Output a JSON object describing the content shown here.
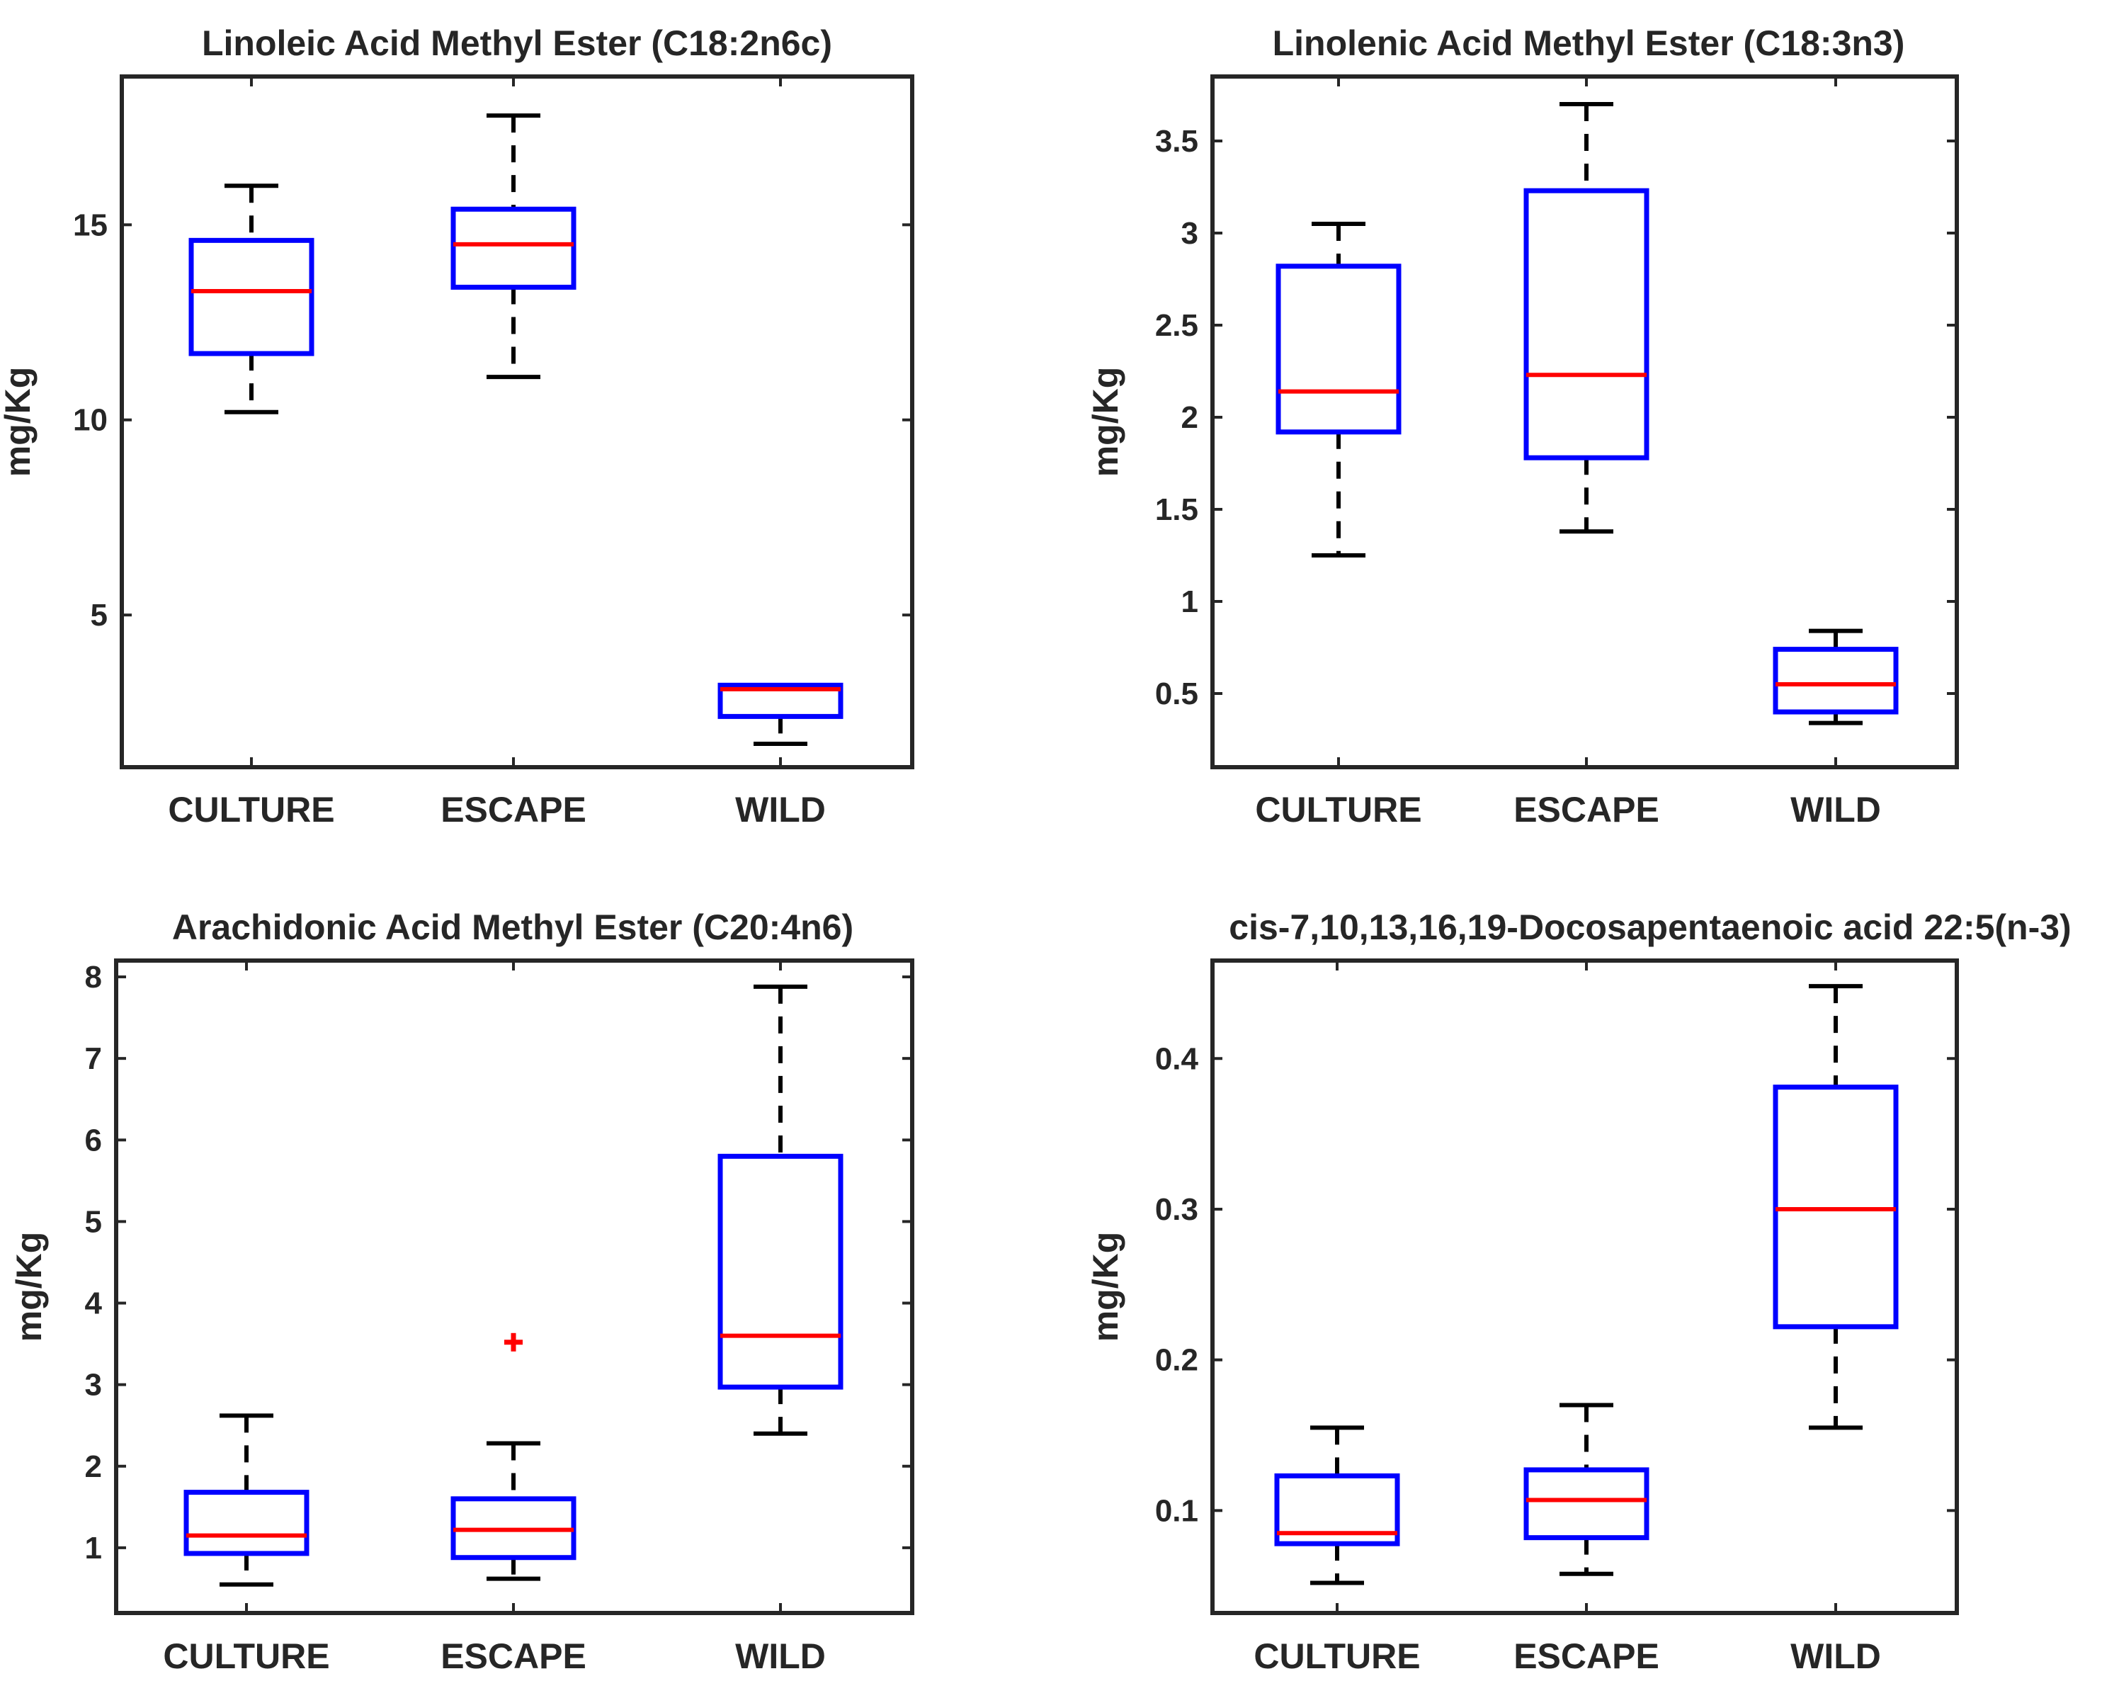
{
  "chart_data": [
    {
      "type": "boxplot",
      "title": "Linoleic Acid Methyl Ester (C18:2n6c)",
      "ylabel": "mg/Kg",
      "ylim": [
        1.1,
        18.8
      ],
      "yticks": [
        5,
        10,
        15
      ],
      "ytick_labels": [
        "5",
        "10",
        "15"
      ],
      "categories": [
        "CULTURE",
        "ESCAPE",
        "WILD"
      ],
      "boxes": [
        {
          "whisker_low": 10.2,
          "q1": 11.7,
          "median": 13.3,
          "q3": 14.6,
          "whisker_high": 16.0
        },
        {
          "whisker_low": 11.1,
          "q1": 13.4,
          "median": 14.5,
          "q3": 15.4,
          "whisker_high": 17.8
        },
        {
          "whisker_low": 1.7,
          "q1": 2.4,
          "median": 3.1,
          "q3": 3.2,
          "whisker_high": 3.2
        }
      ],
      "outliers": []
    },
    {
      "type": "boxplot",
      "title": "Linolenic Acid Methyl Ester (C18:3n3)",
      "ylabel": "mg/Kg",
      "ylim": [
        0.1,
        3.85
      ],
      "yticks": [
        0.5,
        1,
        1.5,
        2,
        2.5,
        3,
        3.5
      ],
      "ytick_labels": [
        "0.5",
        "1",
        "1.5",
        "2",
        "2.5",
        "3",
        "3.5"
      ],
      "categories": [
        "CULTURE",
        "ESCAPE",
        "WILD"
      ],
      "boxes": [
        {
          "whisker_low": 1.25,
          "q1": 1.92,
          "median": 2.14,
          "q3": 2.82,
          "whisker_high": 3.05
        },
        {
          "whisker_low": 1.38,
          "q1": 1.78,
          "median": 2.23,
          "q3": 3.23,
          "whisker_high": 3.7
        },
        {
          "whisker_low": 0.34,
          "q1": 0.4,
          "median": 0.55,
          "q3": 0.74,
          "whisker_high": 0.84
        }
      ],
      "outliers": []
    },
    {
      "type": "boxplot",
      "title": "Arachidonic Acid Methyl Ester (C20:4n6)",
      "ylabel": "mg/Kg",
      "ylim": [
        0.2,
        8.2
      ],
      "yticks": [
        1,
        2,
        3,
        4,
        5,
        6,
        7,
        8
      ],
      "ytick_labels": [
        "1",
        "2",
        "3",
        "4",
        "5",
        "6",
        "7",
        "8"
      ],
      "categories": [
        "CULTURE",
        "ESCAPE",
        "WILD"
      ],
      "boxes": [
        {
          "whisker_low": 0.55,
          "q1": 0.93,
          "median": 1.15,
          "q3": 1.68,
          "whisker_high": 2.62
        },
        {
          "whisker_low": 0.62,
          "q1": 0.88,
          "median": 1.22,
          "q3": 1.6,
          "whisker_high": 2.28
        },
        {
          "whisker_low": 2.4,
          "q1": 2.97,
          "median": 3.6,
          "q3": 5.8,
          "whisker_high": 7.88
        }
      ],
      "outliers": [
        {
          "category": "ESCAPE",
          "value": 3.52
        }
      ]
    },
    {
      "type": "boxplot",
      "title": "cis-7,10,13,16,19-Docosapentaenoic acid 22:5(n-3)",
      "ylabel": "mg/Kg",
      "ylim": [
        0.032,
        0.465
      ],
      "yticks": [
        0.1,
        0.2,
        0.3,
        0.4
      ],
      "ytick_labels": [
        "0.1",
        "0.2",
        "0.3",
        "0.4"
      ],
      "categories": [
        "CULTURE",
        "ESCAPE",
        "WILD"
      ],
      "boxes": [
        {
          "whisker_low": 0.052,
          "q1": 0.078,
          "median": 0.085,
          "q3": 0.123,
          "whisker_high": 0.155
        },
        {
          "whisker_low": 0.058,
          "q1": 0.082,
          "median": 0.107,
          "q3": 0.127,
          "whisker_high": 0.17
        },
        {
          "whisker_low": 0.155,
          "q1": 0.222,
          "median": 0.3,
          "q3": 0.381,
          "whisker_high": 0.448
        }
      ],
      "outliers": []
    }
  ]
}
